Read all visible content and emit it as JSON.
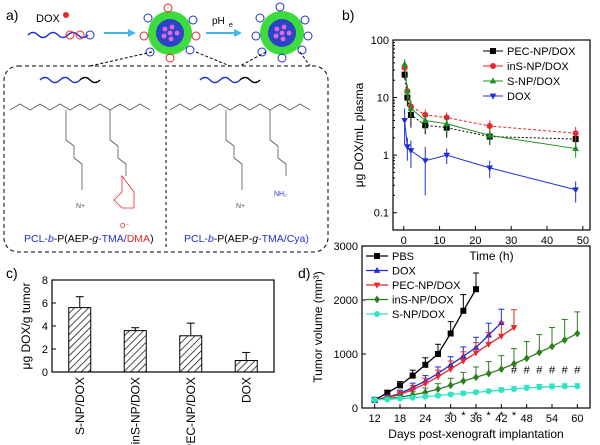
{
  "panels": {
    "a": {
      "label": "a)",
      "dox_label": "DOX",
      "ph_label": "pH",
      "ph_sub": "e",
      "left_polymer": {
        "parts": [
          "PCL-",
          "b",
          "-P(AEP-",
          "g",
          "-TMA/",
          "DMA",
          ")"
        ]
      },
      "right_polymer": {
        "parts": [
          "PCL-",
          "b",
          "-P(AEP-",
          "g",
          "-TMA/Cya)"
        ]
      }
    },
    "b": {
      "label": "b)"
    },
    "c": {
      "label": "c)"
    },
    "d": {
      "label": "d)"
    }
  },
  "colors": {
    "black": "#000000",
    "red": "#e8262c",
    "green": "#1f8f1f",
    "blue": "#1e2fd6",
    "darkgreen": "#2e7d1e",
    "cyan": "#2ee6c4",
    "shell": "#3ddc3d",
    "core": "#2a45c8",
    "chem_red": "#e8262c"
  },
  "chart_data": [
    {
      "id": "b",
      "type": "line",
      "xlabel": "Time (h)",
      "ylabel": "μg DOX/mL plasma",
      "xlim": [
        -3,
        52
      ],
      "ylim": [
        0.05,
        100
      ],
      "yscale": "log",
      "xticks": [
        0,
        10,
        20,
        30,
        40,
        50
      ],
      "yticks": [
        0.1,
        1,
        10,
        100
      ],
      "ytick_labels": [
        "0.1",
        "1",
        "10",
        "100"
      ],
      "legend": "top-right",
      "series": [
        {
          "name": "PEC-NP/DOX",
          "color": "#000000",
          "marker": "square",
          "x": [
            0.25,
            1,
            2,
            6,
            12,
            24,
            48
          ],
          "y": [
            25,
            10,
            5,
            3.3,
            3,
            2.1,
            1.9
          ],
          "err": [
            4,
            3,
            2,
            1,
            1,
            0.6,
            0.5
          ]
        },
        {
          "name": "inS-NP/DOX",
          "color": "#e8262c",
          "marker": "circle",
          "x": [
            0.25,
            1,
            2,
            6,
            12,
            24,
            48
          ],
          "y": [
            33,
            13,
            7,
            5,
            4.5,
            3.2,
            2.4
          ],
          "err": [
            5,
            3,
            2,
            1.2,
            1,
            0.8,
            0.7
          ]
        },
        {
          "name": "S-NP/DOX",
          "color": "#1f8f1f",
          "marker": "triangle-up",
          "x": [
            0.25,
            1,
            2,
            6,
            12,
            24,
            48
          ],
          "y": [
            38,
            13,
            6.5,
            4,
            3.5,
            2.2,
            1.3
          ],
          "err": [
            8,
            4,
            2,
            1.2,
            1,
            0.7,
            0.4
          ]
        },
        {
          "name": "DOX",
          "color": "#1e2fd6",
          "marker": "triangle-down",
          "x": [
            0.25,
            1,
            2,
            6,
            12,
            24,
            48
          ],
          "y": [
            4,
            1.4,
            1.2,
            0.8,
            1.0,
            0.6,
            0.25
          ],
          "err": [
            2.5,
            0.6,
            0.6,
            0.6,
            0.3,
            0.2,
            0.1
          ]
        }
      ]
    },
    {
      "id": "c",
      "type": "bar",
      "ylabel": "μg DOX/g tumor",
      "ylim": [
        0,
        8
      ],
      "yticks": [
        0,
        2,
        4,
        6,
        8
      ],
      "categories": [
        "S-NP/DOX",
        "inS-NP/DOX",
        "PEC-NP/DOX",
        "DOX"
      ],
      "values": [
        5.6,
        3.6,
        3.15,
        1.0
      ],
      "err": [
        0.95,
        0.25,
        1.1,
        0.7
      ]
    },
    {
      "id": "d",
      "type": "line",
      "xlabel": "Days post-xenograft implantation",
      "ylabel": "Tumor volume (mm³)",
      "xlim": [
        9,
        63
      ],
      "ylim": [
        0,
        3000
      ],
      "xticks": [
        12,
        18,
        24,
        30,
        36,
        42,
        48,
        54,
        60
      ],
      "yticks": [
        0,
        1000,
        2000,
        3000
      ],
      "legend": "top-left",
      "series": [
        {
          "name": "PBS",
          "color": "#000000",
          "marker": "square",
          "x": [
            12,
            15,
            18,
            21,
            24,
            27,
            30,
            33,
            36
          ],
          "y": [
            150,
            280,
            420,
            600,
            800,
            1000,
            1380,
            1800,
            2200
          ],
          "err": [
            30,
            50,
            70,
            100,
            130,
            180,
            220,
            300,
            300
          ]
        },
        {
          "name": "DOX",
          "color": "#1e2fd6",
          "marker": "triangle-up",
          "x": [
            12,
            15,
            18,
            21,
            24,
            27,
            30,
            33,
            36,
            39,
            42
          ],
          "y": [
            150,
            200,
            270,
            380,
            500,
            640,
            800,
            960,
            1120,
            1350,
            1580
          ],
          "err": [
            30,
            40,
            60,
            80,
            100,
            120,
            150,
            170,
            190,
            220,
            250
          ]
        },
        {
          "name": "PEC-NP/DOX",
          "color": "#e8262c",
          "marker": "triangle-down",
          "x": [
            12,
            15,
            18,
            21,
            24,
            27,
            30,
            33,
            36,
            39,
            42,
            45
          ],
          "y": [
            150,
            190,
            250,
            340,
            450,
            580,
            720,
            870,
            1020,
            1180,
            1330,
            1490
          ],
          "err": [
            30,
            40,
            60,
            80,
            100,
            120,
            150,
            170,
            190,
            220,
            260,
            330
          ]
        },
        {
          "name": "inS-NP/DOX",
          "color": "#2e7d1e",
          "marker": "diamond",
          "x": [
            12,
            15,
            18,
            21,
            24,
            27,
            30,
            33,
            36,
            39,
            42,
            45,
            48,
            51,
            54,
            57,
            60
          ],
          "y": [
            150,
            170,
            200,
            240,
            290,
            350,
            420,
            500,
            570,
            640,
            720,
            820,
            920,
            1030,
            1140,
            1260,
            1380
          ],
          "err": [
            30,
            40,
            50,
            60,
            80,
            100,
            130,
            160,
            190,
            220,
            250,
            280,
            310,
            330,
            350,
            380,
            400
          ]
        },
        {
          "name": "S-NP/DOX",
          "color": "#2ee6c4",
          "marker": "circle",
          "x": [
            12,
            15,
            18,
            21,
            24,
            27,
            30,
            33,
            36,
            39,
            42,
            45,
            48,
            51,
            54,
            57,
            60
          ],
          "y": [
            150,
            160,
            175,
            190,
            210,
            230,
            250,
            270,
            290,
            310,
            330,
            350,
            370,
            385,
            395,
            400,
            400
          ],
          "err": [
            20,
            20,
            25,
            25,
            30,
            30,
            35,
            35,
            40,
            40,
            45,
            45,
            50,
            50,
            50,
            50,
            50
          ]
        }
      ],
      "annotations": {
        "stars": {
          "symbol": "*",
          "x": [
            30,
            33,
            36,
            39,
            42,
            45
          ],
          "y": [
            -60,
            -60,
            -60,
            -60,
            -60,
            -60
          ]
        },
        "hashes": {
          "symbol": "#",
          "x": [
            45,
            48,
            51,
            54,
            57,
            60
          ],
          "y": [
            640,
            640,
            640,
            640,
            640,
            640
          ]
        }
      }
    }
  ]
}
